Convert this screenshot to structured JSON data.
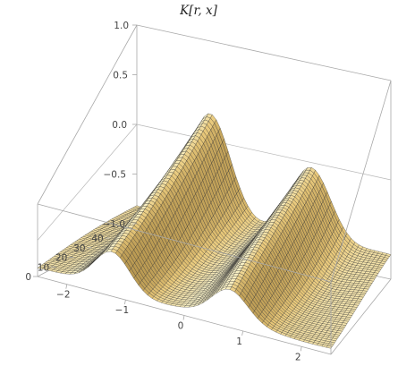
{
  "chart_data": {
    "type": "surface",
    "title": "K[r, x]",
    "x_axis": {
      "range": [
        -2.5,
        2.5
      ],
      "ticks": [
        -2,
        -1,
        0,
        1,
        2
      ],
      "tick_labels": [
        "−2",
        "−1",
        "0",
        "1",
        "2"
      ]
    },
    "y_axis": {
      "range": [
        0,
        55
      ],
      "ticks": [
        0,
        10,
        20,
        30,
        40
      ],
      "tick_labels": [
        "0",
        "10",
        "20",
        "30",
        "40"
      ]
    },
    "z_axis": {
      "range": [
        -1.0,
        1.0
      ],
      "ticks": [
        -1.0,
        -0.5,
        0.0,
        0.5,
        1.0
      ],
      "tick_labels": [
        "−1.0",
        "−0.5",
        "0.0",
        "0.5",
        "1.0"
      ]
    },
    "features": [
      {
        "description": "ridge",
        "x": -1.15,
        "height": 0.25
      },
      {
        "description": "ridge",
        "x": 0.85,
        "height": 0.0
      }
    ],
    "baseline_z": -0.8,
    "colors": {
      "surface_light": "#fbf3c8",
      "surface_mid": "#e8c87a",
      "surface_dark": "#8a6a2a",
      "mesh": "#2a2a2a"
    }
  }
}
